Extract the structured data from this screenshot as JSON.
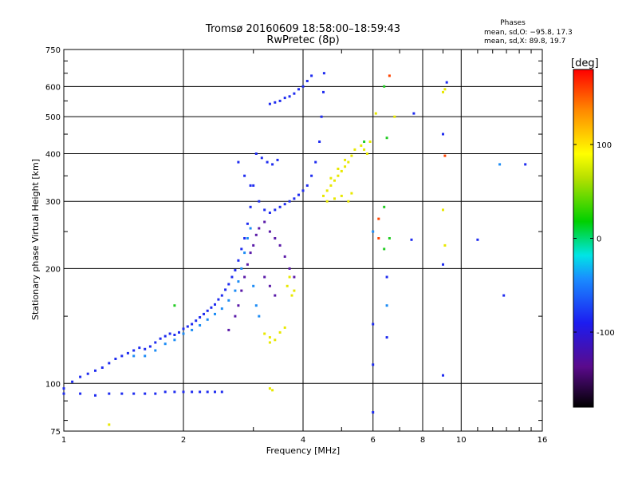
{
  "chart_data": {
    "type": "scatter",
    "title": "Tromsø 20160609 18:58:00–18:59:43",
    "subtitle": "RwPretec (8p)",
    "xlabel": "Frequency [MHz]",
    "ylabel": "Stationary phase Virtual Height [km]",
    "x_scale": "log2",
    "y_scale": "log",
    "xlim": [
      1,
      16
    ],
    "ylim": [
      75,
      750
    ],
    "x_ticks": [
      1,
      2,
      4,
      6,
      8,
      10,
      16
    ],
    "y_ticks": [
      75,
      100,
      200,
      300,
      400,
      500,
      600,
      750
    ],
    "grid": true,
    "stats": {
      "heading": "Phases",
      "line_o": "mean, sd,O: −95.8, 17.3",
      "line_x": "mean, sd,X:  89.8, 19.7"
    },
    "colorbar": {
      "label": "[deg]",
      "ticks": [
        100,
        0,
        -100
      ],
      "range": [
        -180,
        180
      ]
    },
    "series": [
      {
        "values": [
          [
            1.0,
            97
          ],
          [
            1.05,
            101
          ],
          [
            1.1,
            104
          ],
          [
            1.15,
            106
          ],
          [
            1.2,
            108
          ],
          [
            1.25,
            110
          ],
          [
            1.3,
            113
          ],
          [
            1.35,
            116
          ],
          [
            1.4,
            118
          ],
          [
            1.45,
            120
          ],
          [
            1.5,
            122
          ],
          [
            1.55,
            124
          ],
          [
            1.6,
            123
          ],
          [
            1.65,
            125
          ],
          [
            1.7,
            128
          ],
          [
            1.75,
            131
          ],
          [
            1.8,
            133
          ],
          [
            1.85,
            135
          ],
          [
            1.9,
            134
          ],
          [
            1.95,
            136
          ],
          [
            2.0,
            139
          ],
          [
            2.05,
            141
          ],
          [
            2.1,
            143
          ],
          [
            2.15,
            146
          ],
          [
            2.2,
            149
          ],
          [
            2.25,
            152
          ],
          [
            2.3,
            155
          ],
          [
            2.35,
            158
          ],
          [
            2.4,
            161
          ],
          [
            2.45,
            166
          ],
          [
            2.5,
            170
          ],
          [
            2.55,
            176
          ],
          [
            2.6,
            182
          ],
          [
            2.65,
            190
          ],
          [
            2.7,
            198
          ],
          [
            2.75,
            210
          ],
          [
            2.8,
            225
          ],
          [
            2.85,
            240
          ],
          [
            2.9,
            262
          ],
          [
            2.95,
            290
          ],
          [
            3.0,
            330
          ],
          [
            3.1,
            300
          ],
          [
            3.2,
            285
          ],
          [
            3.3,
            280
          ],
          [
            3.4,
            285
          ],
          [
            3.5,
            290
          ],
          [
            3.6,
            295
          ],
          [
            3.7,
            300
          ],
          [
            3.8,
            305
          ],
          [
            3.9,
            312
          ],
          [
            4.0,
            320
          ],
          [
            4.1,
            330
          ],
          [
            4.2,
            350
          ],
          [
            4.3,
            380
          ],
          [
            4.4,
            430
          ],
          [
            4.45,
            500
          ],
          [
            4.5,
            580
          ],
          [
            4.52,
            650
          ],
          [
            1.0,
            94
          ],
          [
            1.1,
            94
          ],
          [
            1.2,
            93
          ],
          [
            1.3,
            94
          ],
          [
            1.4,
            94
          ],
          [
            1.5,
            94
          ],
          [
            1.6,
            94
          ],
          [
            1.7,
            94
          ],
          [
            1.8,
            95
          ],
          [
            1.9,
            95
          ],
          [
            2.0,
            95
          ],
          [
            2.1,
            95
          ],
          [
            2.2,
            95
          ],
          [
            2.3,
            95
          ],
          [
            2.4,
            95
          ],
          [
            2.5,
            95
          ],
          [
            3.3,
            540
          ],
          [
            3.4,
            545
          ],
          [
            3.5,
            550
          ],
          [
            3.6,
            560
          ],
          [
            3.7,
            565
          ],
          [
            3.8,
            575
          ],
          [
            3.9,
            590
          ],
          [
            4.0,
            600
          ],
          [
            4.1,
            620
          ],
          [
            4.2,
            640
          ],
          [
            2.75,
            380
          ],
          [
            2.85,
            350
          ],
          [
            2.95,
            330
          ],
          [
            3.05,
            400
          ],
          [
            3.15,
            390
          ],
          [
            3.25,
            380
          ],
          [
            3.35,
            375
          ],
          [
            3.45,
            385
          ],
          [
            6.0,
            84
          ],
          [
            6.0,
            112
          ],
          [
            6.0,
            143
          ],
          [
            6.5,
            190
          ],
          [
            6.5,
            132
          ],
          [
            7.5,
            238
          ],
          [
            9.0,
            105
          ],
          [
            9.0,
            205
          ],
          [
            9.0,
            450
          ],
          [
            9.2,
            615
          ],
          [
            11.0,
            238
          ],
          [
            12.8,
            170
          ],
          [
            14.5,
            375
          ],
          [
            7.6,
            510
          ]
        ]
      },
      {
        "values": [
          [
            2.6,
            138
          ],
          [
            2.7,
            150
          ],
          [
            2.75,
            160
          ],
          [
            2.8,
            175
          ],
          [
            2.85,
            190
          ],
          [
            2.9,
            205
          ],
          [
            2.95,
            220
          ],
          [
            3.0,
            230
          ],
          [
            3.05,
            245
          ],
          [
            3.1,
            255
          ],
          [
            3.2,
            265
          ],
          [
            3.3,
            250
          ],
          [
            3.4,
            240
          ],
          [
            3.5,
            230
          ],
          [
            3.6,
            215
          ],
          [
            3.7,
            200
          ],
          [
            3.8,
            190
          ],
          [
            3.2,
            190
          ],
          [
            3.3,
            180
          ],
          [
            3.4,
            170
          ]
        ]
      },
      {
        "values": [
          [
            1.6,
            118
          ],
          [
            1.7,
            122
          ],
          [
            1.8,
            127
          ],
          [
            1.9,
            130
          ],
          [
            2.0,
            135
          ],
          [
            2.1,
            138
          ],
          [
            2.2,
            142
          ],
          [
            2.3,
            147
          ],
          [
            2.4,
            152
          ],
          [
            2.5,
            157
          ],
          [
            2.6,
            165
          ],
          [
            2.7,
            175
          ],
          [
            2.75,
            185
          ],
          [
            2.8,
            200
          ],
          [
            2.85,
            220
          ],
          [
            2.9,
            240
          ],
          [
            2.95,
            255
          ],
          [
            3.0,
            180
          ],
          [
            3.05,
            160
          ],
          [
            3.1,
            150
          ],
          [
            6.0,
            250
          ],
          [
            6.5,
            160
          ],
          [
            1.5,
            118
          ],
          [
            12.5,
            375
          ]
        ]
      },
      {
        "values": [
          [
            3.2,
            135
          ],
          [
            3.3,
            132
          ],
          [
            3.4,
            130
          ],
          [
            3.5,
            136
          ],
          [
            3.6,
            140
          ],
          [
            3.3,
            128
          ],
          [
            3.65,
            180
          ],
          [
            3.7,
            190
          ],
          [
            3.8,
            175
          ],
          [
            3.75,
            170
          ],
          [
            4.5,
            310
          ],
          [
            4.6,
            320
          ],
          [
            4.7,
            330
          ],
          [
            4.8,
            340
          ],
          [
            4.9,
            350
          ],
          [
            5.0,
            360
          ],
          [
            5.1,
            370
          ],
          [
            5.2,
            380
          ],
          [
            5.3,
            395
          ],
          [
            5.4,
            410
          ],
          [
            4.6,
            300
          ],
          [
            4.8,
            305
          ],
          [
            5.0,
            310
          ],
          [
            5.2,
            300
          ],
          [
            5.3,
            315
          ],
          [
            4.7,
            345
          ],
          [
            4.9,
            365
          ],
          [
            5.1,
            385
          ],
          [
            5.7,
            410
          ],
          [
            5.8,
            400
          ],
          [
            5.6,
            420
          ],
          [
            5.9,
            430
          ],
          [
            3.3,
            97
          ],
          [
            3.35,
            96
          ],
          [
            1.3,
            78
          ],
          [
            6.1,
            510
          ],
          [
            6.8,
            500
          ],
          [
            9.0,
            580
          ],
          [
            9.1,
            590
          ],
          [
            9.0,
            285
          ],
          [
            9.1,
            230
          ]
        ]
      },
      {
        "values": [
          [
            6.5,
            440
          ],
          [
            6.6,
            240
          ],
          [
            6.4,
            225
          ],
          [
            6.4,
            290
          ],
          [
            5.7,
            430
          ],
          [
            1.9,
            160
          ],
          [
            6.4,
            600
          ]
        ]
      },
      {
        "values": [
          [
            6.2,
            270
          ],
          [
            6.6,
            640
          ],
          [
            9.1,
            395
          ],
          [
            6.2,
            240
          ]
        ]
      }
    ]
  }
}
